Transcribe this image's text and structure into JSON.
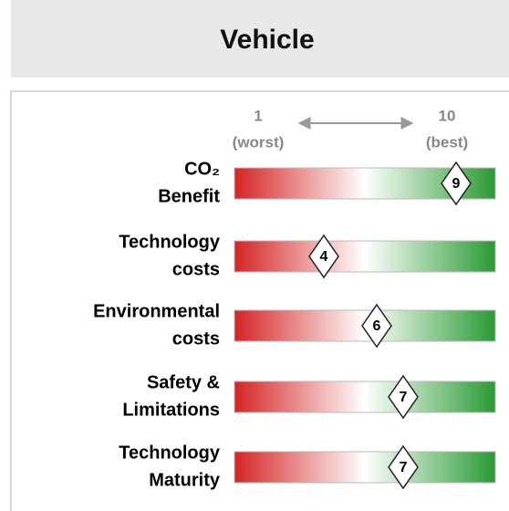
{
  "chart_data": {
    "type": "rating",
    "title": "Vehicle",
    "categories": [
      [
        "CO₂",
        "Benefit"
      ],
      [
        "Technology",
        "costs"
      ],
      [
        "Environmental",
        "costs"
      ],
      [
        "Safety &",
        "Limitations"
      ],
      [
        "Technology",
        "Maturity"
      ]
    ],
    "values": [
      9,
      4,
      6,
      7,
      7
    ],
    "xlim": [
      1,
      10
    ],
    "xticks": [
      1,
      10
    ],
    "xtick_captions": [
      "(worst)",
      "(best)"
    ],
    "colors": [
      "#d42424",
      "#ffffff",
      "#2a9a34"
    ]
  }
}
